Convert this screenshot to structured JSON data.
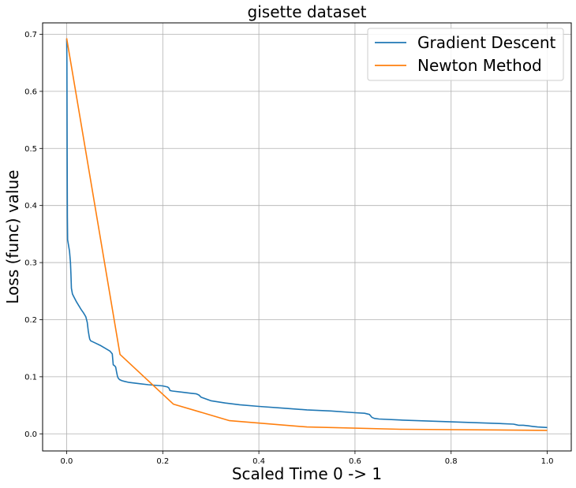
{
  "chart_data": {
    "type": "line",
    "title": "gisette dataset",
    "xlabel": "Scaled Time 0 -> 1",
    "ylabel": "Loss (func) value",
    "xlim": [
      -0.05,
      1.05
    ],
    "ylim": [
      -0.03,
      0.72
    ],
    "grid": true,
    "legend_position": "top-right",
    "xticks": [
      "0.0",
      "0.2",
      "0.4",
      "0.6",
      "0.8",
      "1.0"
    ],
    "yticks": [
      "0.0",
      "0.1",
      "0.2",
      "0.3",
      "0.4",
      "0.5",
      "0.6",
      "0.7"
    ],
    "series": [
      {
        "name": "Gradient Descent",
        "color": "#1f77b4",
        "x": [
          0.0,
          0.0005,
          0.001,
          0.0015,
          0.002,
          0.004,
          0.006,
          0.008,
          0.009,
          0.01,
          0.012,
          0.015,
          0.02,
          0.025,
          0.03,
          0.035,
          0.04,
          0.043,
          0.045,
          0.047,
          0.048,
          0.05,
          0.06,
          0.07,
          0.08,
          0.09,
          0.095,
          0.097,
          0.1,
          0.102,
          0.104,
          0.106,
          0.108,
          0.11,
          0.115,
          0.12,
          0.13,
          0.15,
          0.17,
          0.2,
          0.21,
          0.213,
          0.215,
          0.22,
          0.24,
          0.26,
          0.27,
          0.275,
          0.28,
          0.3,
          0.33,
          0.36,
          0.4,
          0.45,
          0.5,
          0.55,
          0.6,
          0.62,
          0.63,
          0.632,
          0.635,
          0.64,
          0.65,
          0.7,
          0.8,
          0.9,
          0.93,
          0.935,
          0.94,
          0.95,
          0.96,
          0.97,
          0.98,
          1.0
        ],
        "y": [
          0.692,
          0.65,
          0.5,
          0.38,
          0.34,
          0.33,
          0.32,
          0.3,
          0.28,
          0.255,
          0.245,
          0.24,
          0.232,
          0.225,
          0.218,
          0.212,
          0.205,
          0.195,
          0.18,
          0.17,
          0.166,
          0.163,
          0.159,
          0.155,
          0.15,
          0.145,
          0.14,
          0.121,
          0.119,
          0.117,
          0.108,
          0.1,
          0.097,
          0.095,
          0.093,
          0.092,
          0.09,
          0.088,
          0.086,
          0.084,
          0.082,
          0.08,
          0.076,
          0.075,
          0.073,
          0.071,
          0.07,
          0.068,
          0.064,
          0.058,
          0.054,
          0.051,
          0.048,
          0.045,
          0.042,
          0.04,
          0.037,
          0.036,
          0.034,
          0.032,
          0.029,
          0.027,
          0.026,
          0.024,
          0.021,
          0.018,
          0.017,
          0.016,
          0.015,
          0.015,
          0.014,
          0.013,
          0.012,
          0.011
        ]
      },
      {
        "name": "Newton Method",
        "color": "#ff7f0e",
        "x": [
          0.0,
          0.111,
          0.222,
          0.339,
          0.5,
          0.694,
          1.0
        ],
        "y": [
          0.693,
          0.139,
          0.052,
          0.023,
          0.012,
          0.008,
          0.006
        ]
      }
    ]
  }
}
